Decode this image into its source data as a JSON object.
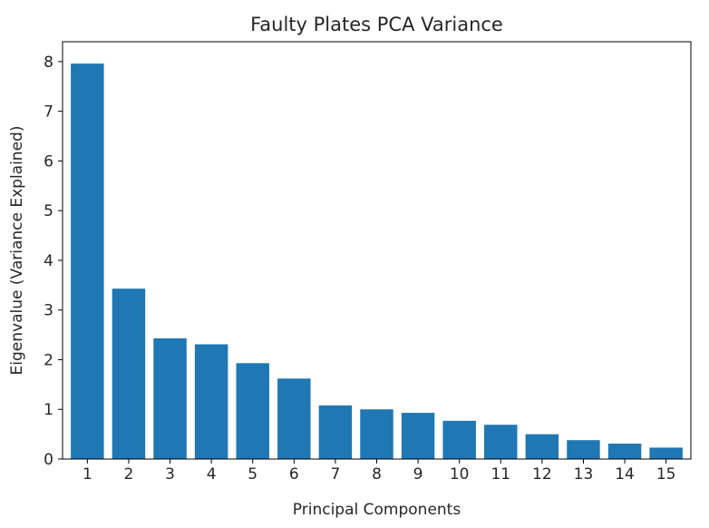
{
  "chart_data": {
    "type": "bar",
    "title": "Faulty Plates PCA Variance",
    "xlabel": "Principal Components",
    "ylabel": "Eigenvalue (Variance Explained)",
    "categories": [
      "1",
      "2",
      "3",
      "4",
      "5",
      "6",
      "7",
      "8",
      "9",
      "10",
      "11",
      "12",
      "13",
      "14",
      "15"
    ],
    "values": [
      7.96,
      3.43,
      2.43,
      2.31,
      1.93,
      1.62,
      1.08,
      1.0,
      0.93,
      0.77,
      0.69,
      0.5,
      0.38,
      0.31,
      0.23
    ],
    "ylim": [
      0,
      8.4
    ],
    "yticks": [
      "0",
      "1",
      "2",
      "3",
      "4",
      "5",
      "6",
      "7",
      "8"
    ],
    "grid": false,
    "legend": "none",
    "colors": {
      "bar": "#1f77b4",
      "axis": "#000000",
      "text": "#262626"
    }
  }
}
